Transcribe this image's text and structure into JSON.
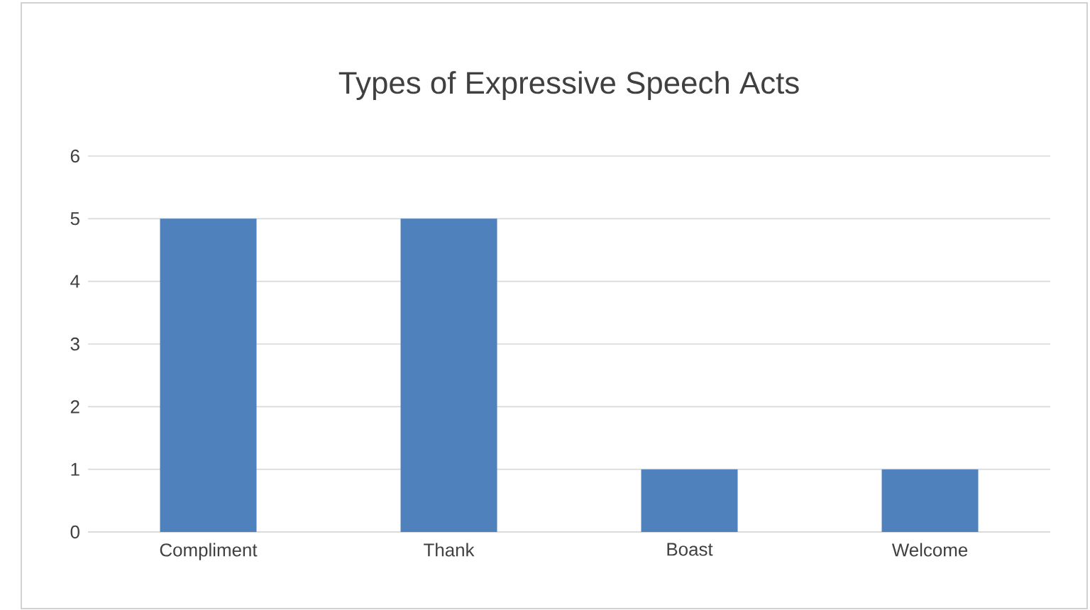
{
  "chart_data": {
    "type": "bar",
    "title": "Types of Expressive Speech Acts",
    "categories": [
      "Compliment",
      "Thank",
      "Boast",
      "Welcome"
    ],
    "values": [
      5,
      5,
      1,
      1
    ],
    "color": "#4f81bd",
    "ylim": [
      0,
      6
    ],
    "yticks": [
      0,
      1,
      2,
      3,
      4,
      5,
      6
    ],
    "grid": "y"
  }
}
